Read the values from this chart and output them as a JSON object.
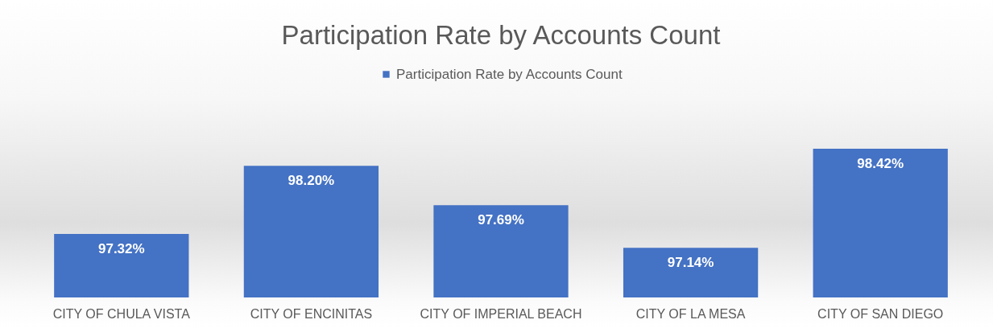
{
  "chart_data": {
    "type": "bar",
    "title": "Participation Rate by Accounts Count",
    "categories": [
      "CITY OF CHULA VISTA",
      "CITY OF ENCINITAS",
      "CITY OF IMPERIAL BEACH",
      "CITY OF LA MESA",
      "CITY OF SAN DIEGO"
    ],
    "series": [
      {
        "name": "Participation Rate by Accounts Count",
        "color": "#4472c4",
        "values": [
          97.32,
          98.2,
          97.69,
          97.14,
          98.42
        ],
        "value_labels": [
          "97.32%",
          "98.20%",
          "97.69%",
          "97.14%",
          "98.42%"
        ]
      }
    ],
    "ylim": [
      96.5,
      98.42
    ],
    "tick_labels": "x",
    "legend": "top"
  }
}
